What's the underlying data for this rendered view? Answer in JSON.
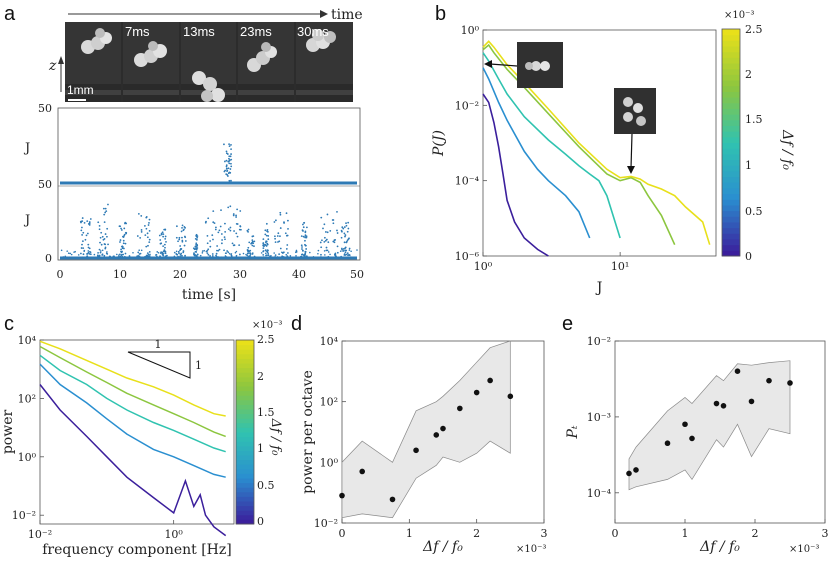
{
  "panels": {
    "a": {
      "label": "a",
      "time_arrow_label": "time",
      "z_label": "z",
      "scale_bar_label": "1mm",
      "frame_labels": [
        "7ms",
        "13ms",
        "23ms",
        "30ms"
      ],
      "upper_ylabel": "J",
      "lower_ylabel": "J",
      "upper_yticks": [
        "50",
        "50"
      ],
      "lower_yticks": [
        "0"
      ],
      "xticks": [
        "0",
        "10",
        "20",
        "30",
        "40",
        "50"
      ],
      "xlabel": "time [s]"
    },
    "b": {
      "label": "b",
      "colorbar_exponent": "×10⁻³",
      "colorbar_label": "Δf / f₀",
      "colorbar_ticks": [
        "2.5",
        "2",
        "1.5",
        "1",
        "0.5",
        "0"
      ]
    },
    "c": {
      "label": "c",
      "slope_label_top": "1",
      "slope_label_side": "1",
      "colorbar_exponent": "×10⁻³",
      "colorbar_label": "Δf / f₀",
      "colorbar_ticks": [
        "2.5",
        "2",
        "1.5",
        "1",
        "0.5",
        "0"
      ]
    },
    "d": {
      "label": "d",
      "exponent": "×10⁻³"
    },
    "e": {
      "label": "e",
      "exponent": "×10⁻³"
    }
  },
  "colors": {
    "trace": "#2e7ab5",
    "band": "#e8e8e8",
    "points": "#111111",
    "viridis": [
      "#3b1f9c",
      "#2a8fd0",
      "#30c3b0",
      "#8cc63f",
      "#e8e01a"
    ]
  },
  "chart_data": [
    {
      "id": "b",
      "type": "line",
      "title": "",
      "xlabel": "J",
      "ylabel": "P(J)",
      "xscale": "log",
      "yscale": "log",
      "xlim": [
        1,
        50
      ],
      "ylim": [
        1e-06,
        1
      ],
      "xticks": [
        {
          "v": 1,
          "t": "10⁰"
        },
        {
          "v": 10,
          "t": "10¹"
        }
      ],
      "yticks": [
        {
          "v": 1,
          "t": "10⁰"
        },
        {
          "v": 0.01,
          "t": "10⁻²"
        },
        {
          "v": 0.0001,
          "t": "10⁻⁴"
        },
        {
          "v": 1e-06,
          "t": "10⁻⁶"
        }
      ],
      "series": [
        {
          "name": "Δf/f0 ≈ 0.2e-3",
          "x": [
            1,
            1.1,
            1.2,
            1.3,
            1.4,
            1.5,
            1.7,
            2,
            2.5,
            3
          ],
          "y": [
            0.02,
            0.012,
            0.0035,
            0.0008,
            0.00015,
            3e-05,
            8e-06,
            3e-06,
            1.5e-06,
            1e-06
          ]
        },
        {
          "name": "Δf/f0 ≈ 1.0e-3",
          "x": [
            1,
            1.1,
            1.3,
            1.5,
            2,
            2.5,
            3,
            4,
            5,
            6
          ],
          "y": [
            0.1,
            0.05,
            0.012,
            0.004,
            0.0006,
            0.0002,
            0.0001,
            4e-05,
            1.5e-05,
            3e-06
          ]
        },
        {
          "name": "Δf/f0 ≈ 1.5e-3",
          "x": [
            1,
            1.1,
            1.3,
            1.5,
            2,
            3,
            4,
            5,
            6,
            7,
            8,
            10
          ],
          "y": [
            0.25,
            0.15,
            0.05,
            0.02,
            0.005,
            0.0012,
            0.0005,
            0.00025,
            0.00015,
            0.0001,
            4e-05,
            3e-06
          ]
        },
        {
          "name": "Δf/f0 ≈ 2.0e-3",
          "x": [
            1,
            1.1,
            1.2,
            1.5,
            2,
            3,
            5,
            8,
            10,
            12,
            14,
            16,
            20,
            25
          ],
          "y": [
            0.3,
            0.4,
            0.25,
            0.09,
            0.03,
            0.006,
            0.0008,
            0.00015,
            0.0001,
            0.00012,
            9e-05,
            4e-05,
            1.2e-05,
            2e-06
          ]
        },
        {
          "name": "Δf/f0 ≈ 2.5e-3",
          "x": [
            1,
            1.1,
            1.2,
            1.5,
            2,
            3,
            5,
            8,
            10,
            12,
            14,
            16,
            20,
            25,
            30,
            40,
            45
          ],
          "y": [
            0.35,
            0.5,
            0.35,
            0.12,
            0.04,
            0.008,
            0.001,
            0.0002,
            0.00012,
            0.00013,
            0.00011,
            8e-05,
            6e-05,
            4e-05,
            2e-05,
            8e-06,
            2e-06
          ]
        }
      ]
    },
    {
      "id": "c",
      "type": "line",
      "title": "",
      "xlabel": "frequency component [Hz]",
      "ylabel": "power",
      "xscale": "log",
      "yscale": "log",
      "xlim": [
        0.01,
        8
      ],
      "ylim": [
        0.005,
        10000
      ],
      "xticks": [
        {
          "v": 0.01,
          "t": "10⁻²"
        },
        {
          "v": 1,
          "t": "10⁰"
        }
      ],
      "yticks": [
        {
          "v": 10000,
          "t": "10⁴"
        },
        {
          "v": 100,
          "t": "10²"
        },
        {
          "v": 1,
          "t": "10⁰"
        },
        {
          "v": 0.01,
          "t": "10⁻²"
        }
      ],
      "series": [
        {
          "name": "Δf/f0 ≈ 0.2e-3",
          "x": [
            0.01,
            0.02,
            0.05,
            0.1,
            0.2,
            0.5,
            1,
            1.5,
            2,
            2.5,
            3,
            4,
            6
          ],
          "y": [
            300,
            40,
            5,
            1,
            0.2,
            0.04,
            0.012,
            0.15,
            0.02,
            0.05,
            0.01,
            0.004,
            0.002
          ]
        },
        {
          "name": "Δf/f0 ≈ 1.0e-3",
          "x": [
            0.01,
            0.02,
            0.05,
            0.1,
            0.2,
            0.5,
            1,
            2,
            4,
            6
          ],
          "y": [
            1500,
            300,
            70,
            20,
            6,
            1.8,
            1,
            0.5,
            0.25,
            0.2
          ]
        },
        {
          "name": "Δf/f0 ≈ 1.5e-3",
          "x": [
            0.01,
            0.02,
            0.05,
            0.1,
            0.2,
            0.5,
            1,
            2,
            4,
            6
          ],
          "y": [
            3000,
            900,
            300,
            100,
            40,
            15,
            8,
            4,
            2,
            1.5
          ]
        },
        {
          "name": "Δf/f0 ≈ 2.0e-3",
          "x": [
            0.01,
            0.02,
            0.05,
            0.1,
            0.2,
            0.5,
            1,
            2,
            4,
            6
          ],
          "y": [
            6000,
            2500,
            800,
            350,
            150,
            60,
            30,
            15,
            7,
            5
          ]
        },
        {
          "name": "Δf/f0 ≈ 2.5e-3",
          "x": [
            0.01,
            0.02,
            0.05,
            0.1,
            0.2,
            0.5,
            1,
            2,
            4,
            6
          ],
          "y": [
            9000,
            5000,
            2000,
            1000,
            500,
            250,
            130,
            60,
            30,
            25
          ]
        }
      ]
    },
    {
      "id": "d",
      "type": "scatter",
      "title": "",
      "xlabel": "Δf / f₀",
      "ylabel": "power per octave",
      "xscale": "linear",
      "yscale": "log",
      "xlim": [
        0,
        3
      ],
      "ylim": [
        0.01,
        10000
      ],
      "xticks": [
        {
          "v": 0,
          "t": "0"
        },
        {
          "v": 1,
          "t": "1"
        },
        {
          "v": 2,
          "t": "2"
        },
        {
          "v": 3,
          "t": "3"
        }
      ],
      "yticks": [
        {
          "v": 10000,
          "t": "10⁴"
        },
        {
          "v": 100,
          "t": "10²"
        },
        {
          "v": 1,
          "t": "10⁰"
        },
        {
          "v": 0.01,
          "t": "10⁻²"
        }
      ],
      "x": [
        0,
        0.3,
        0.75,
        1.1,
        1.4,
        1.5,
        1.75,
        2.0,
        2.2,
        2.5
      ],
      "y": [
        0.08,
        0.5,
        0.06,
        2.5,
        8,
        13,
        60,
        200,
        500,
        150
      ],
      "band_lower": [
        0.015,
        0.02,
        0.015,
        0.3,
        0.8,
        1.5,
        1,
        2,
        5,
        2
      ],
      "band_upper": [
        1,
        5,
        1,
        50,
        100,
        150,
        500,
        2000,
        6000,
        10000
      ]
    },
    {
      "id": "e",
      "type": "scatter",
      "title": "",
      "xlabel": "Δf / f₀",
      "ylabel": "Pₜ",
      "xscale": "linear",
      "yscale": "log",
      "xlim": [
        0,
        3
      ],
      "ylim": [
        4e-05,
        0.01
      ],
      "xticks": [
        {
          "v": 0,
          "t": "0"
        },
        {
          "v": 1,
          "t": "1"
        },
        {
          "v": 2,
          "t": "2"
        },
        {
          "v": 3,
          "t": "3"
        }
      ],
      "yticks": [
        {
          "v": 0.01,
          "t": "10⁻²"
        },
        {
          "v": 0.001,
          "t": "10⁻³"
        },
        {
          "v": 0.0001,
          "t": "10⁻⁴"
        }
      ],
      "x": [
        0.2,
        0.3,
        0.75,
        1.0,
        1.1,
        1.45,
        1.55,
        1.75,
        1.95,
        2.2,
        2.5
      ],
      "y": [
        0.00018,
        0.0002,
        0.00045,
        0.0008,
        0.00052,
        0.0015,
        0.0014,
        0.004,
        0.0016,
        0.003,
        0.0028
      ],
      "band_lower": [
        0.00011,
        0.00012,
        0.00015,
        0.0002,
        0.00015,
        0.0005,
        0.0004,
        0.0008,
        0.0003,
        0.0007,
        0.0006
      ],
      "band_upper": [
        0.00028,
        0.0004,
        0.0012,
        0.0018,
        0.0015,
        0.0035,
        0.003,
        0.005,
        0.0048,
        0.0052,
        0.0055
      ]
    }
  ]
}
